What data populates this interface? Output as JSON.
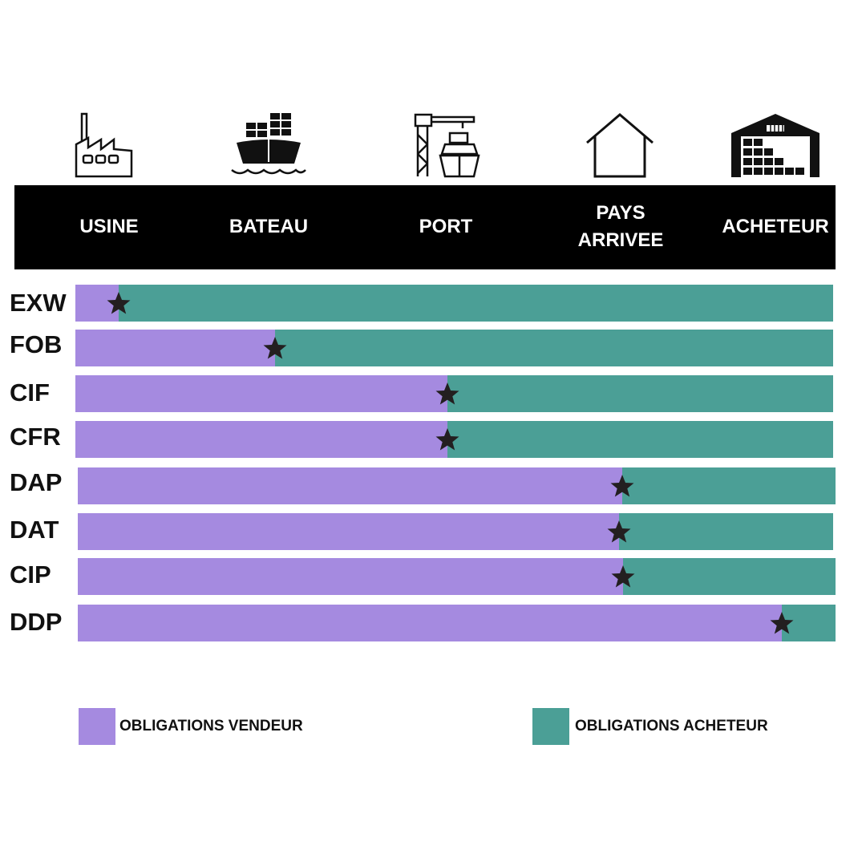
{
  "colors": {
    "seller": "#a58ae0",
    "buyer": "#4b9f96",
    "header_bg": "#000000",
    "header_text": "#ffffff",
    "star": "#231f20"
  },
  "header": {
    "stages": [
      {
        "label": "USINE",
        "icon": "factory-icon"
      },
      {
        "label": "BATEAU",
        "icon": "ship-icon"
      },
      {
        "label": "PORT",
        "icon": "port-crane-icon"
      },
      {
        "label": "PAYS\nARRIVEE",
        "icon": "house-icon"
      },
      {
        "label": "ACHETEUR",
        "icon": "warehouse-icon"
      }
    ]
  },
  "chart_data": {
    "type": "bar",
    "orientation": "horizontal-stacked",
    "categories": [
      "EXW",
      "FOB",
      "CIF",
      "CFR",
      "DAP",
      "DAT",
      "CIP",
      "DDP"
    ],
    "series": [
      {
        "name": "OBLIGATIONS VENDEUR",
        "values": [
          5.7,
          26.4,
          49.1,
          49.1,
          71.8,
          71.7,
          72.0,
          92.9
        ]
      },
      {
        "name": "OBLIGATIONS ACHETEUR",
        "values": [
          94.3,
          73.6,
          50.9,
          50.9,
          28.2,
          28.3,
          28.0,
          7.1
        ]
      }
    ],
    "transfer_point_marker": "star",
    "xlim": [
      0,
      100
    ],
    "legend": "bottom"
  },
  "legend": {
    "seller_label": "OBLIGATIONS VENDEUR",
    "buyer_label": "OBLIGATIONS ACHETEUR"
  }
}
